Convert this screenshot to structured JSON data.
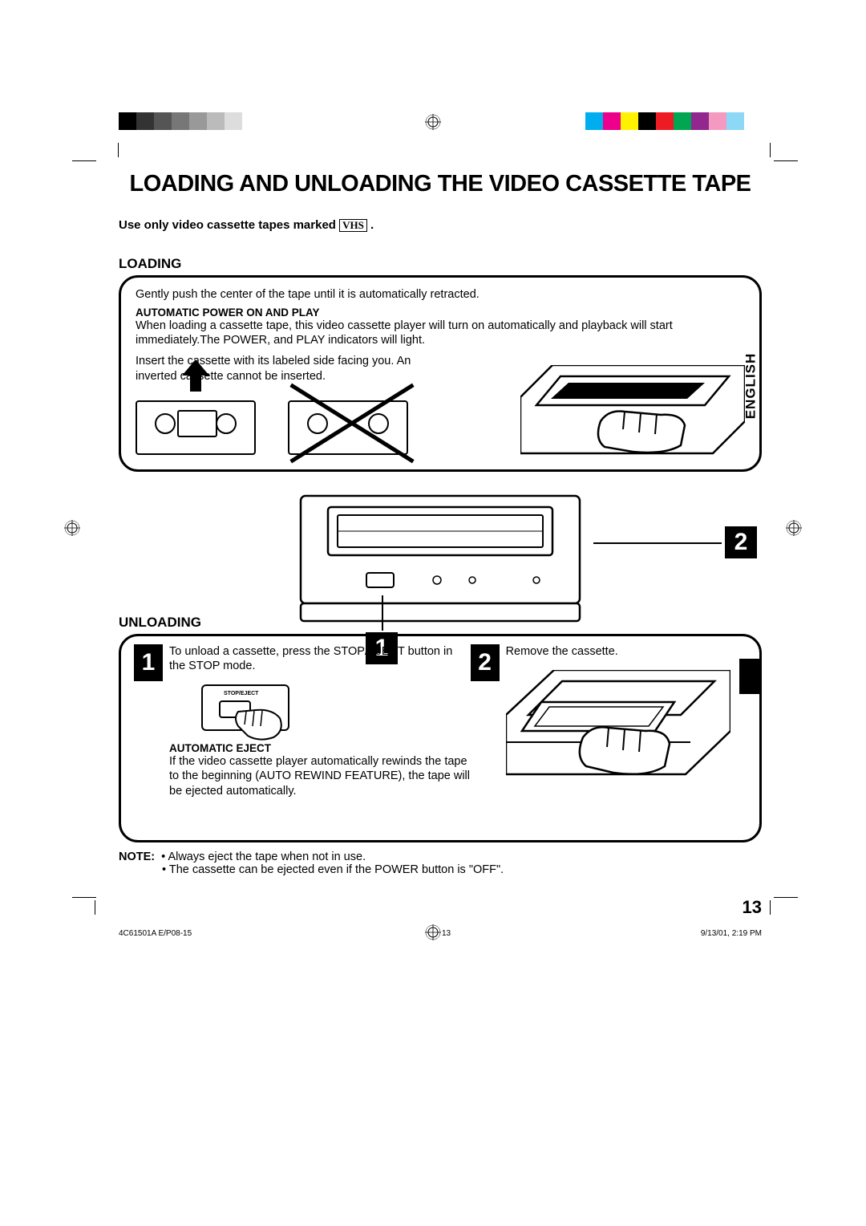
{
  "title": "LOADING AND UNLOADING THE VIDEO CASSETTE TAPE",
  "intro_prefix": "Use only video cassette tapes marked ",
  "intro_suffix": " .",
  "vhs_label": "VHS",
  "loading": {
    "heading": "LOADING",
    "line1": "Gently push the center of the tape until it is automatically retracted.",
    "subhead": "AUTOMATIC POWER ON AND PLAY",
    "body": "When loading a cassette tape, this video cassette player will  turn on automatically and playback will start immediately.The POWER, and PLAY indicators will light.",
    "insert_note": "Insert the cassette with its labeled side facing you. An inverted cassette cannot be inserted."
  },
  "callouts": {
    "one": "1",
    "two": "2"
  },
  "unloading": {
    "heading": "UNLOADING",
    "step1": {
      "num": "1",
      "text": "To unload a cassette, press the STOP/EJECT button in the STOP mode.",
      "button_label": "STOP/EJECT",
      "subhead": "AUTOMATIC EJECT",
      "body": "If the video cassette player automatically rewinds the tape to the beginning (AUTO REWIND FEATURE), the tape will be ejected automatically."
    },
    "step2": {
      "num": "2",
      "text": "Remove the cassette."
    }
  },
  "notes": {
    "label": "NOTE:",
    "n1": "• Always eject the tape when not in use.",
    "n2": "• The cassette can be ejected even if the POWER button is \"OFF\"."
  },
  "page_number": "13",
  "side_tab": "ENGLISH",
  "footer": {
    "doc_id": "4C61501A E/P08-15",
    "page": "13",
    "timestamp": "9/13/01, 2:19 PM"
  },
  "colors": {
    "grays": [
      "#000000",
      "#333333",
      "#555555",
      "#777777",
      "#999999",
      "#bbbbbb",
      "#dddddd",
      "#ffffff"
    ],
    "hues": [
      "#00aeef",
      "#ec008c",
      "#fff200",
      "#000000",
      "#ed1c24",
      "#00a651",
      "#92278f",
      "#f49ac1",
      "#8dd7f7",
      "#ffffff"
    ]
  }
}
